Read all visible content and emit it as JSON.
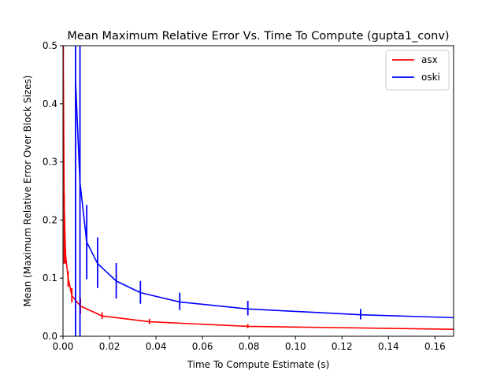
{
  "chart_data": {
    "type": "line",
    "title": "Mean Maximum Relative Error Vs. Time To Compute (gupta1_conv)",
    "xlabel": "Time To Compute Estimate (s)",
    "ylabel": "Mean (Maximum Relative Error Over Block Sizes)",
    "xlim": [
      0,
      0.168
    ],
    "ylim": [
      0,
      0.5
    ],
    "xticks": [
      0.0,
      0.02,
      0.04,
      0.06,
      0.08,
      0.1,
      0.12,
      0.14,
      0.16
    ],
    "xtick_labels": [
      "0.00",
      "0.02",
      "0.04",
      "0.06",
      "0.08",
      "0.10",
      "0.12",
      "0.14",
      "0.16"
    ],
    "yticks": [
      0.0,
      0.1,
      0.2,
      0.3,
      0.4,
      0.5
    ],
    "ytick_labels": [
      "0.0",
      "0.1",
      "0.2",
      "0.3",
      "0.4",
      "0.5"
    ],
    "grid": false,
    "legend_position": "top-right",
    "series": [
      {
        "name": "asx",
        "color": "#ff0000",
        "x": [
          0.0001,
          0.0005,
          0.0011,
          0.0022,
          0.0038,
          0.0075,
          0.0168,
          0.0372,
          0.0795,
          0.168
        ],
        "y": [
          0.5,
          0.23,
          0.14,
          0.1,
          0.07,
          0.052,
          0.035,
          0.025,
          0.017,
          0.012
        ],
        "err_low": [
          0.48,
          0.125,
          0.125,
          0.085,
          0.058,
          0.039,
          0.03,
          0.021,
          0.014,
          0.011
        ],
        "err_high": [
          0.5,
          0.245,
          0.15,
          0.112,
          0.083,
          0.065,
          0.041,
          0.03,
          0.021,
          0.013
        ]
      },
      {
        "name": "oski",
        "color": "#0000ff",
        "x": [
          0.0054,
          0.0073,
          0.0102,
          0.0149,
          0.0229,
          0.0333,
          0.0502,
          0.0795,
          0.128,
          0.168
        ],
        "y": [
          0.44,
          0.265,
          0.162,
          0.125,
          0.095,
          0.075,
          0.059,
          0.047,
          0.037,
          0.032
        ],
        "err_low": [
          0.0,
          0.0,
          0.098,
          0.083,
          0.065,
          0.056,
          0.045,
          0.036,
          0.029,
          null
        ],
        "err_high": [
          0.5,
          0.5,
          0.226,
          0.17,
          0.126,
          0.095,
          0.075,
          0.061,
          0.047,
          null
        ]
      }
    ]
  }
}
